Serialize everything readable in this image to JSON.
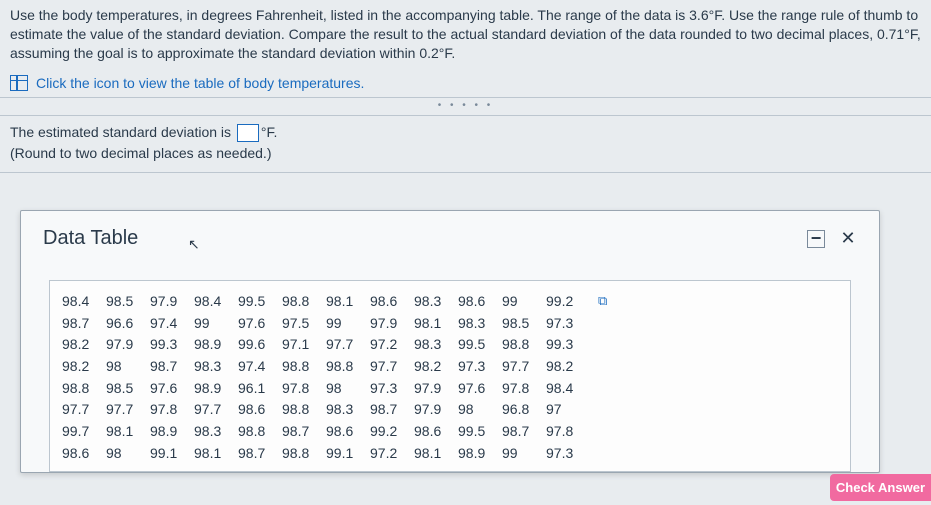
{
  "problem": {
    "text": "Use the body temperatures, in degrees Fahrenheit, listed in the accompanying table. The range of the data is 3.6°F. Use the range rule of thumb to estimate the value of the standard deviation. Compare the result to the actual standard deviation of the data rounded to two decimal places, 0.71°F, assuming the goal is to approximate the standard deviation within 0.2°F."
  },
  "link": {
    "label": "Click the icon to view the table of body temperatures."
  },
  "answer": {
    "prefix": "The estimated standard deviation is",
    "unit": "°F.",
    "hint": "(Round to two decimal places as needed.)",
    "value": ""
  },
  "modal": {
    "title": "Data Table",
    "minimize": "−",
    "close": "✕"
  },
  "table": {
    "rows": [
      [
        "98.4",
        "98.5",
        "97.9",
        "98.4",
        "99.5",
        "98.8",
        "98.1",
        "98.6",
        "98.3",
        "98.6",
        "99",
        "99.2"
      ],
      [
        "98.7",
        "96.6",
        "97.4",
        "99",
        "97.6",
        "97.5",
        "99",
        "97.9",
        "98.1",
        "98.3",
        "98.5",
        "97.3"
      ],
      [
        "98.2",
        "97.9",
        "99.3",
        "98.9",
        "99.6",
        "97.1",
        "97.7",
        "97.2",
        "98.3",
        "99.5",
        "98.8",
        "99.3"
      ],
      [
        "98.2",
        "98",
        "98.7",
        "98.3",
        "97.4",
        "98.8",
        "98.8",
        "97.7",
        "98.2",
        "97.3",
        "97.7",
        "98.2"
      ],
      [
        "98.8",
        "98.5",
        "97.6",
        "98.9",
        "96.1",
        "97.8",
        "98",
        "97.3",
        "97.9",
        "97.6",
        "97.8",
        "98.4"
      ],
      [
        "97.7",
        "97.7",
        "97.8",
        "97.7",
        "98.6",
        "98.8",
        "98.3",
        "98.7",
        "97.9",
        "98",
        "96.8",
        "97"
      ],
      [
        "99.7",
        "98.1",
        "98.9",
        "98.3",
        "98.8",
        "98.7",
        "98.6",
        "99.2",
        "98.6",
        "99.5",
        "98.7",
        "97.8"
      ],
      [
        "98.6",
        "98",
        "99.1",
        "98.1",
        "98.7",
        "98.8",
        "99.1",
        "97.2",
        "98.1",
        "98.9",
        "99",
        "97.3"
      ]
    ]
  },
  "button": {
    "check": "Check Answer"
  },
  "colors": {
    "link": "#1a6bbf",
    "bg": "#e8ecef",
    "text": "#2a3a4a",
    "border": "#bcc6cf",
    "accent": "#f16aa0"
  }
}
